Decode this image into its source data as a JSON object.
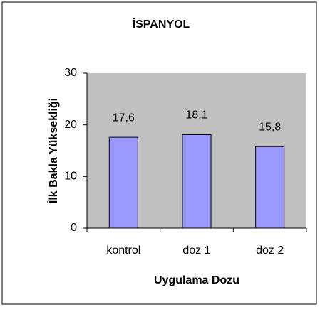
{
  "chart_data": {
    "type": "bar",
    "title": "İSPANYOL",
    "categories": [
      "kontrol",
      "doz 1",
      "doz 2"
    ],
    "values": [
      17.6,
      18.1,
      15.8
    ],
    "value_labels": [
      "17,6",
      "18,1",
      "15,8"
    ],
    "color": "#9999ff",
    "xlabel": "Uygulama Dozu",
    "ylabel": "İlk Bakla Yüksekliği",
    "ylim": [
      0,
      30
    ],
    "yticks": [
      0,
      10,
      20,
      30
    ],
    "grid": false
  }
}
